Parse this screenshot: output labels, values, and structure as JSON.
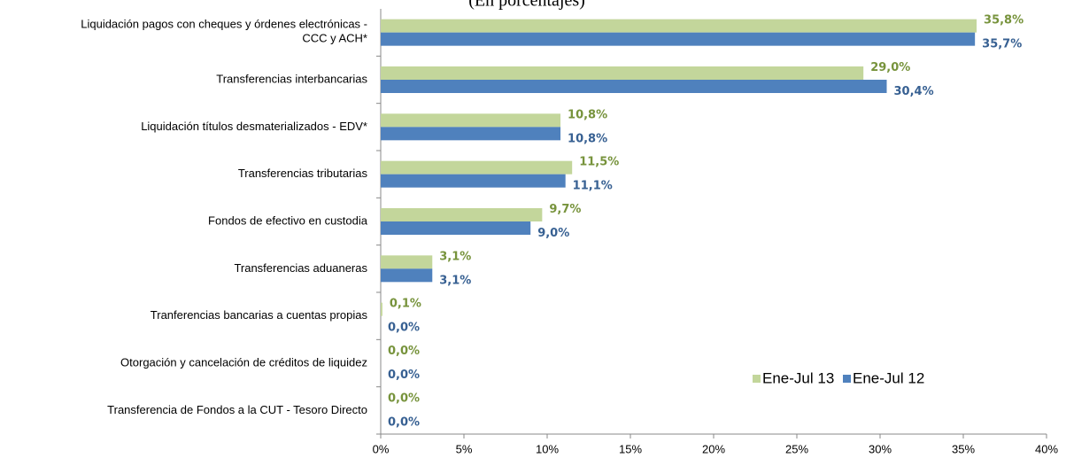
{
  "chart_data": {
    "type": "hbar",
    "subtitle": "(En porcentajes)",
    "categories": [
      "Liquidación pagos con cheques y órdenes electrónicas -\nCCC y ACH*",
      "Transferencias interbancarias",
      "Liquidación títulos desmaterializados - EDV*",
      "Transferencias tributarias",
      "Fondos de efectivo en custodia",
      "Transferencias aduaneras",
      "Tranferencias bancarias a cuentas propias",
      "Otorgación y cancelación de créditos de liquidez",
      "Transferencia de Fondos a la CUT - Tesoro Directo"
    ],
    "series": [
      {
        "name": "Ene-Jul 13",
        "color": "#c3d69b",
        "label_color": "#77933c",
        "values": [
          35.8,
          29.0,
          10.8,
          11.5,
          9.7,
          3.1,
          0.1,
          0.0,
          0.0
        ],
        "value_labels": [
          "35,8%",
          "29,0%",
          "10,8%",
          "11,5%",
          "9,7%",
          "3,1%",
          "0,1%",
          "0,0%",
          "0,0%"
        ]
      },
      {
        "name": "Ene-Jul 12",
        "color": "#4f81bd",
        "label_color": "#376092",
        "values": [
          35.7,
          30.4,
          10.8,
          11.1,
          9.0,
          3.1,
          0.0,
          0.0,
          0.0
        ],
        "value_labels": [
          "35,7%",
          "30,4%",
          "10,8%",
          "11,1%",
          "9,0%",
          "3,1%",
          "0,0%",
          "0,0%",
          "0,0%"
        ]
      }
    ],
    "xlim": [
      0,
      40
    ],
    "xticks": [
      {
        "value": 0,
        "label": "0%"
      },
      {
        "value": 5,
        "label": "5%"
      },
      {
        "value": 10,
        "label": "10%"
      },
      {
        "value": 15,
        "label": "15%"
      },
      {
        "value": 20,
        "label": "20%"
      },
      {
        "value": 25,
        "label": "25%"
      },
      {
        "value": 30,
        "label": "30%"
      },
      {
        "value": 35,
        "label": "35%"
      },
      {
        "value": 40,
        "label": "40%"
      }
    ],
    "legend": "lower right"
  }
}
